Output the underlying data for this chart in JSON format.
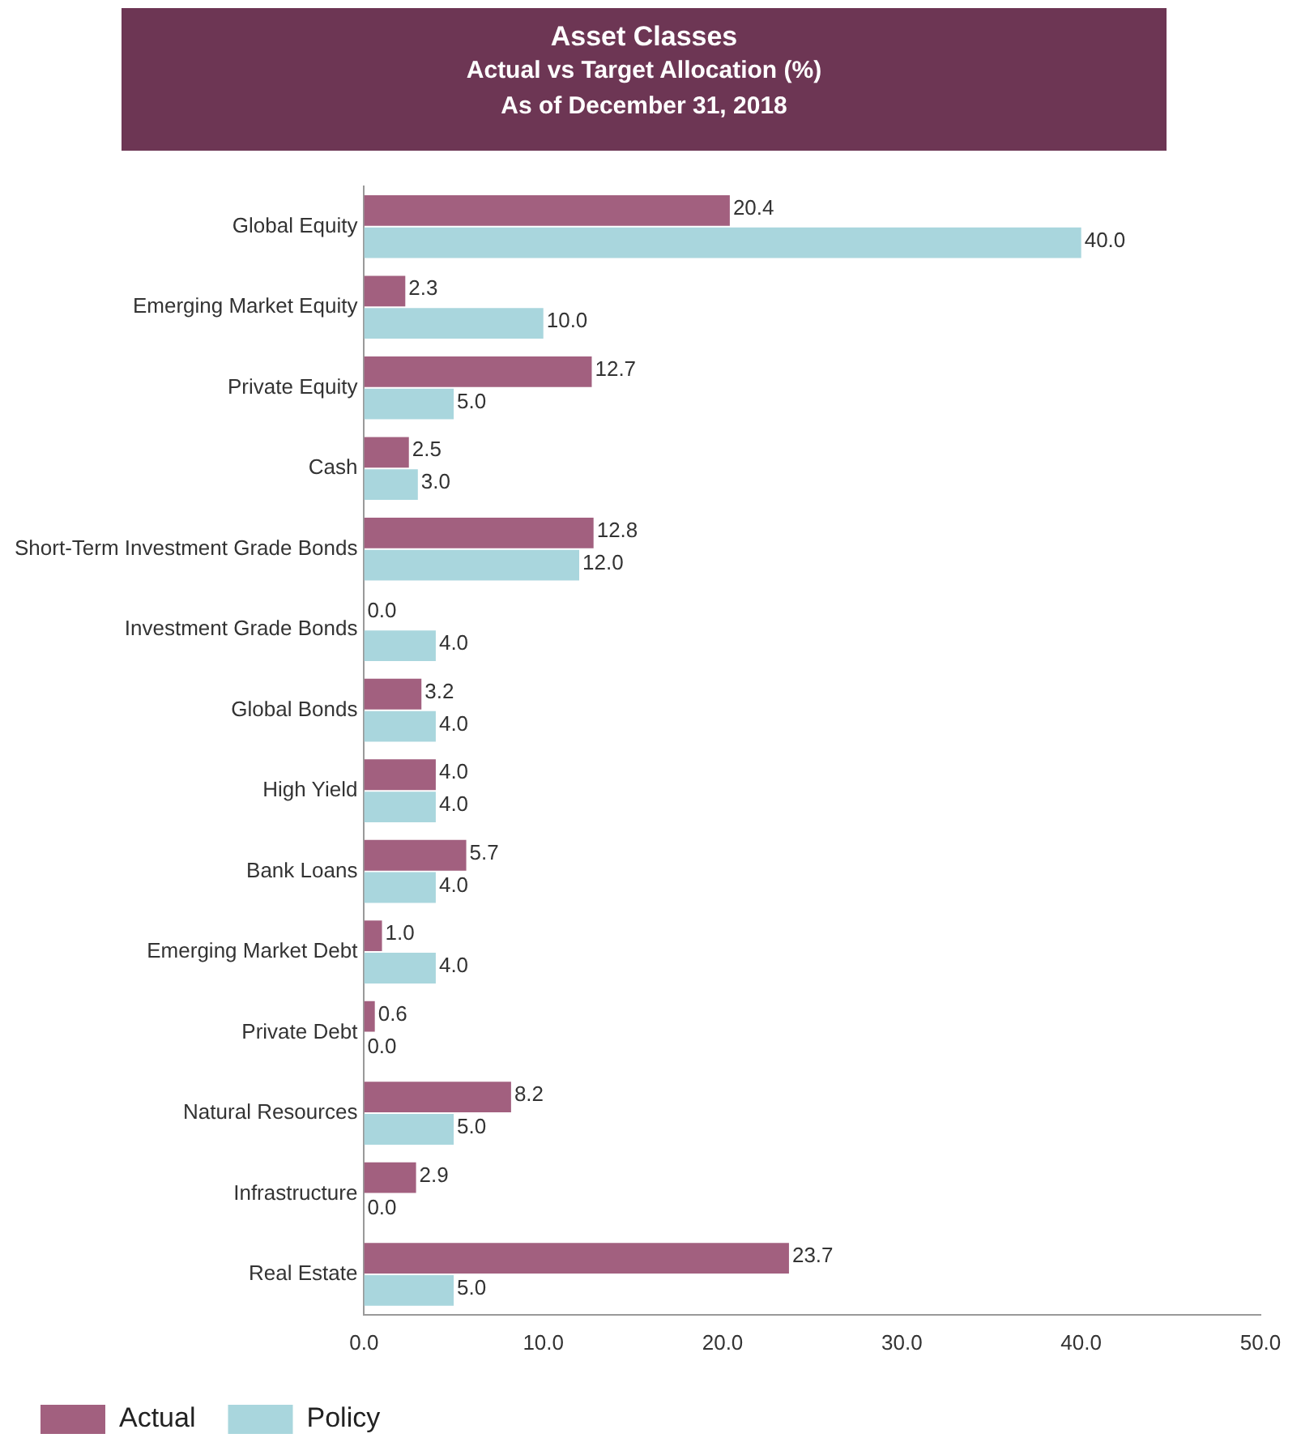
{
  "chart_data": {
    "type": "bar",
    "orientation": "horizontal",
    "title": "Asset Classes",
    "subtitle": "Actual vs Target Allocation (%)\nAs of December 31, 2018",
    "categories": [
      "Global Equity",
      "Emerging Market Equity",
      "Private Equity",
      "Cash",
      "Short-Term Investment Grade Bonds",
      "Investment Grade Bonds",
      "Global Bonds",
      "High Yield",
      "Bank Loans",
      "Emerging Market Debt",
      "Private Debt",
      "Natural Resources",
      "Infrastructure",
      "Real Estate"
    ],
    "series": [
      {
        "name": "Actual",
        "color": "#a2607f",
        "values": [
          20.4,
          2.3,
          12.7,
          2.5,
          12.8,
          0,
          3.2,
          4,
          5.7,
          1,
          0.6,
          8.2,
          2.9,
          23.7
        ],
        "value_labels": [
          "20.4",
          "2.3",
          "12.7",
          "2.5",
          "12.8",
          "0.0",
          "3.2",
          "4.0",
          "5.7",
          "1.0",
          "0.6",
          "8.2",
          "2.9",
          "23.7"
        ]
      },
      {
        "name": "Policy",
        "color": "#a9d6dd",
        "values": [
          40,
          10,
          5,
          3,
          12,
          4,
          4,
          4,
          4,
          4,
          0,
          5,
          0,
          5
        ],
        "value_labels": [
          "40.0",
          "10.0",
          "5.0",
          "3.0",
          "12.0",
          "4.0",
          "4.0",
          "4.0",
          "4.0",
          "4.0",
          "0.0",
          "5.0",
          "0.0",
          "5.0"
        ]
      }
    ],
    "xlim": [
      0,
      50
    ],
    "xticks": [
      {
        "value": 0,
        "label": "0.0"
      },
      {
        "value": 10,
        "label": "10.0"
      },
      {
        "value": 20,
        "label": "20.0"
      },
      {
        "value": 30,
        "label": "30.0"
      },
      {
        "value": 40,
        "label": "40.0"
      },
      {
        "value": 50,
        "label": "50.0"
      }
    ],
    "grid": false,
    "legend": "bottom left"
  }
}
